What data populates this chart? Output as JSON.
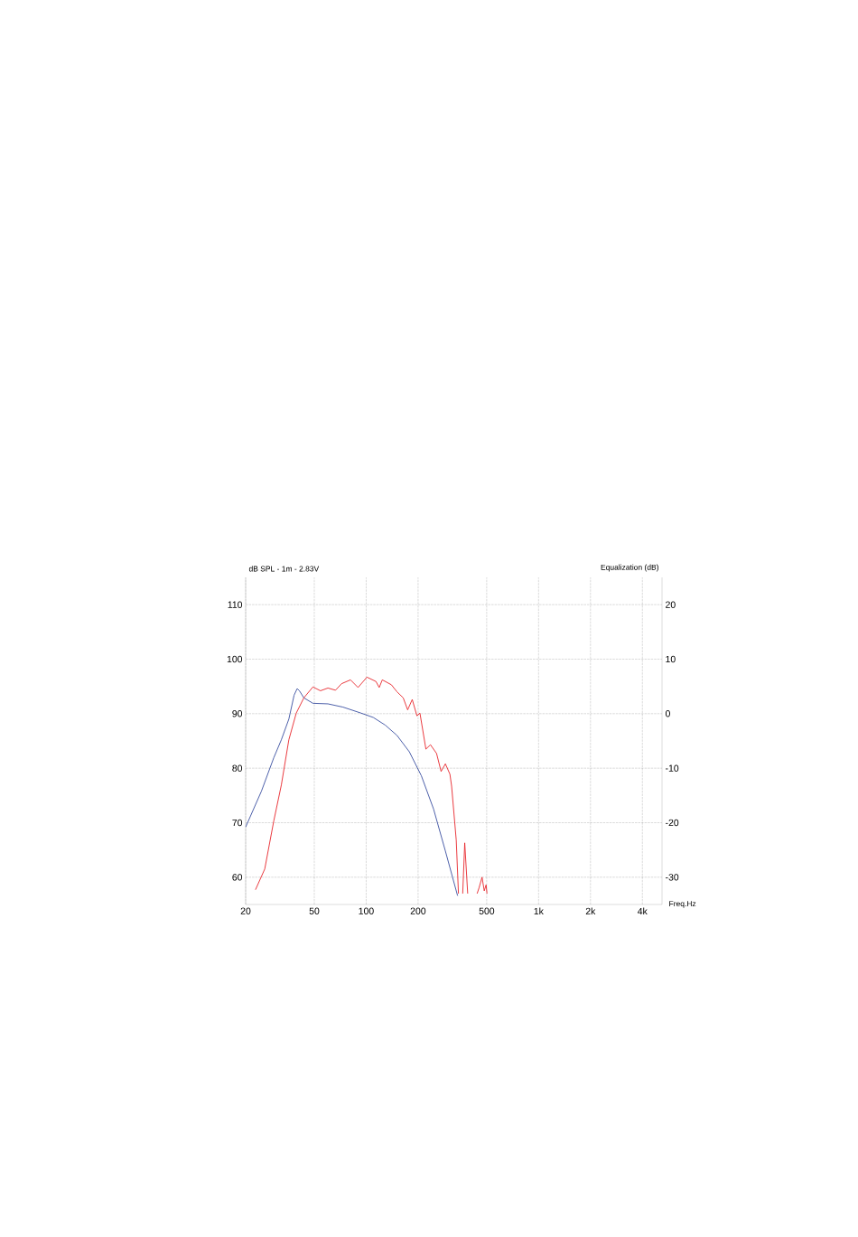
{
  "chart_data": {
    "type": "line",
    "xlabel": "Freq.Hz",
    "ylabel": "dB SPL - 1m - 2.83V",
    "y2label": "Equalization (dB)",
    "log": "x",
    "grid": true,
    "marker": "none",
    "line_style": "solid",
    "xlim": [
      20,
      5200
    ],
    "xticks": [
      20,
      50,
      100,
      200,
      500,
      {
        "value": 1000,
        "label": "1k"
      },
      {
        "value": 2000,
        "label": "2k"
      },
      {
        "value": 4000,
        "label": "4k"
      }
    ],
    "ylim": [
      55,
      115
    ],
    "yticks": [
      60,
      70,
      80,
      90,
      100,
      110
    ],
    "y2lim": [
      -35,
      25
    ],
    "y2ticks": [
      -30,
      -20,
      -10,
      0,
      10,
      20
    ],
    "series": [
      {
        "color": "#3a4fa0",
        "x": [
          20,
          24.7,
          29.1,
          32.2,
          35.6,
          38.2,
          39.8,
          41,
          43.5,
          49.1,
          60,
          73.4,
          93.4,
          110,
          129,
          151,
          178,
          209,
          246,
          288,
          339
        ],
        "values": [
          69.2,
          75.8,
          81.9,
          85.2,
          89,
          93.4,
          94.6,
          94.2,
          92.9,
          91.9,
          91.8,
          91.2,
          90.1,
          89.3,
          87.9,
          86,
          83,
          78.6,
          72.5,
          64.8,
          56.6
        ]
      },
      {
        "color": "#e8262b",
        "x": [
          22.8,
          25.8,
          29.1,
          32.2,
          35.6,
          39.3,
          43.5,
          49.1,
          54.3,
          60,
          66.4,
          72,
          81.1,
          89.7,
          101,
          114,
          119,
          124,
          140,
          151,
          164,
          174,
          185,
          197,
          205,
          222,
          236,
          256,
          272,
          288,
          306,
          313,
          333,
          343,
          352,
          363,
          373,
          388,
          420,
          440,
          451,
          470,
          484,
          496,
          502
        ],
        "values": [
          57.7,
          61.5,
          70.3,
          76.9,
          85.2,
          90.1,
          92.9,
          94.9,
          94.2,
          94.7,
          94.3,
          95.5,
          96.2,
          94.8,
          96.7,
          95.9,
          94.8,
          96.2,
          95.3,
          94,
          92.9,
          90.7,
          92.6,
          89.6,
          90.1,
          83.5,
          84.3,
          82.7,
          79.4,
          80.8,
          78.9,
          76.7,
          66.8,
          57,
          null,
          57,
          66.3,
          57,
          null,
          57,
          58,
          60,
          57.5,
          58.6,
          57
        ]
      }
    ]
  }
}
